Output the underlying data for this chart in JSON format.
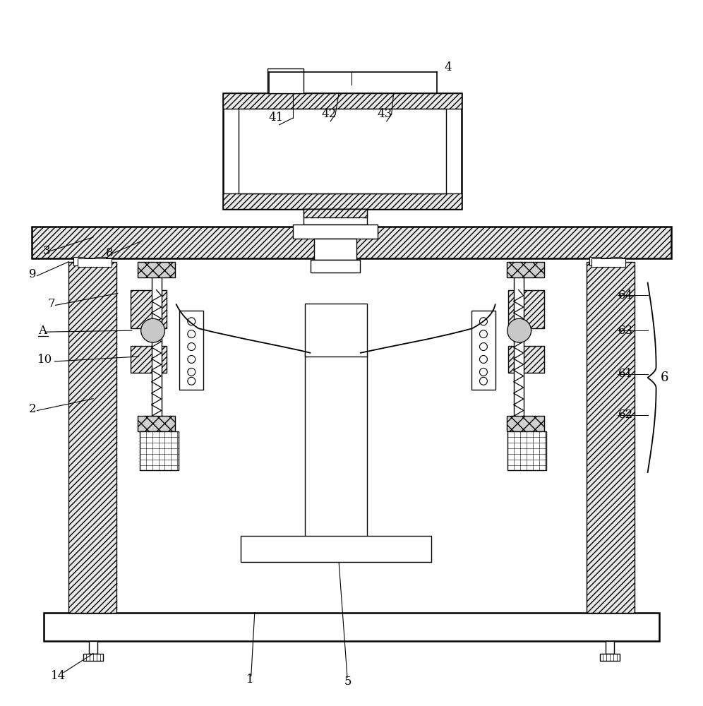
{
  "bg_color": "#ffffff",
  "line_color": "#000000",
  "fig_width": 9.96,
  "fig_height": 10.0
}
